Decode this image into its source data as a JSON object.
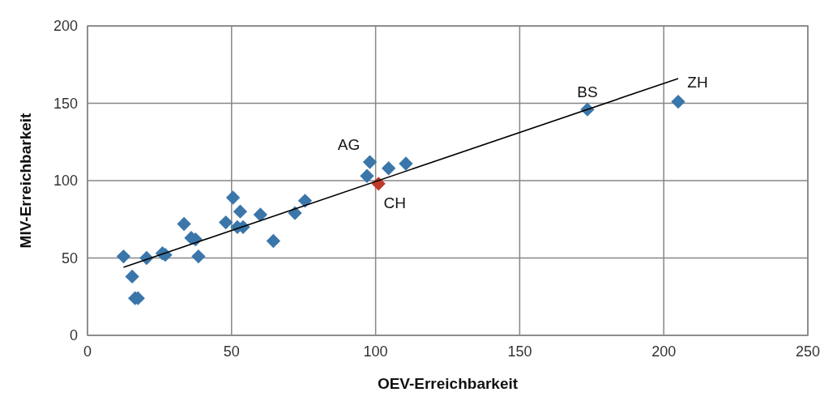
{
  "chart_data": {
    "type": "scatter",
    "xlabel": "OEV-Erreichbarkeit",
    "ylabel": "MIV-Erreichbarkeit",
    "xlim": [
      0,
      250
    ],
    "xticks": [
      0,
      50,
      100,
      150,
      200,
      250
    ],
    "ylim": [
      0,
      200
    ],
    "yticks": [
      0,
      50,
      100,
      150,
      200
    ],
    "grid": true,
    "marker": "diamond",
    "series": [
      {
        "color": "#3a76aa",
        "x": [
          12.5,
          15.5,
          16.5,
          17.5,
          20.5,
          26,
          27,
          33.5,
          36,
          37.5,
          38.5,
          48,
          50.5,
          52,
          53,
          54,
          60,
          64.5,
          72,
          75.5,
          97,
          98,
          104.5,
          110.5,
          173.5,
          205
        ],
        "values": [
          51,
          38,
          24,
          24,
          50,
          53,
          52,
          72,
          63,
          62,
          51,
          73,
          89,
          70,
          80,
          70,
          78,
          61,
          79,
          87,
          103,
          112,
          108,
          111,
          146,
          151
        ]
      },
      {
        "color": "#c0392b",
        "x": [
          101
        ],
        "values": [
          98
        ]
      },
      {
        "type": "line",
        "color": "#000000",
        "marker": "none",
        "x": [
          12.5,
          205
        ],
        "values": [
          44,
          166
        ]
      }
    ],
    "annotations": [
      {
        "text": "AG",
        "x": 98,
        "y": 112
      },
      {
        "text": "CH",
        "x": 101,
        "y": 98
      },
      {
        "text": "BS",
        "x": 173.5,
        "y": 146
      },
      {
        "text": "ZH",
        "x": 205,
        "y": 151
      }
    ]
  }
}
